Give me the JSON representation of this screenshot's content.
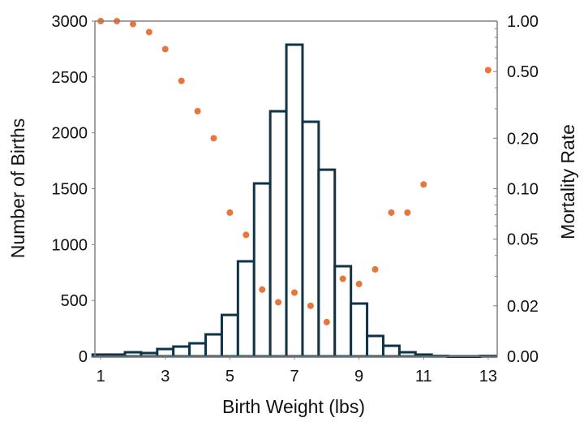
{
  "chart_data": {
    "type": "bar",
    "xlabel": "Birth Weight (lbs)",
    "ylabel": "Number of Births",
    "y2label": "Mortality Rate",
    "xlim": [
      0.82,
      13.28
    ],
    "ylim": [
      0,
      3000
    ],
    "y2scale": "log",
    "y2lim": [
      0.01,
      1.0
    ],
    "x_ticks": [
      1,
      3,
      5,
      7,
      9,
      11,
      13
    ],
    "y_ticks": [
      0,
      500,
      1000,
      1500,
      2000,
      2500,
      3000
    ],
    "y2_ticks": [
      {
        "value": 0.01,
        "label": "0.00"
      },
      {
        "value": 0.02,
        "label": "0.02"
      },
      {
        "value": 0.05,
        "label": "0.05"
      },
      {
        "value": 0.1,
        "label": "0.10"
      },
      {
        "value": 0.2,
        "label": "0.20"
      },
      {
        "value": 0.5,
        "label": "0.50"
      },
      {
        "value": 1.0,
        "label": "1.00"
      }
    ],
    "grid": false,
    "bin_width": 0.5,
    "histogram": {
      "x": [
        1,
        1.5,
        2,
        2.5,
        3,
        3.5,
        4,
        4.5,
        5,
        5.5,
        6,
        6.5,
        7,
        7.5,
        8,
        8.5,
        9,
        9.5,
        10,
        10.5,
        11,
        11.5,
        12,
        12.5,
        13
      ],
      "values": [
        15,
        15,
        36,
        29,
        65,
        87,
        116,
        196,
        370,
        850,
        1547,
        2193,
        2789,
        2099,
        1670,
        806,
        472,
        182,
        94,
        36,
        15,
        3,
        0,
        0,
        3
      ]
    },
    "mortality": {
      "x": [
        1,
        1.5,
        2,
        2.5,
        3,
        3.5,
        4,
        4.5,
        5,
        5.5,
        6,
        6.5,
        7,
        7.5,
        8,
        8.5,
        9,
        9.5,
        10,
        10.5,
        11,
        13
      ],
      "values": [
        1.0,
        1.0,
        0.96,
        0.86,
        0.68,
        0.44,
        0.29,
        0.2,
        0.072,
        0.053,
        0.025,
        0.021,
        0.024,
        0.02,
        0.016,
        0.029,
        0.027,
        0.033,
        0.072,
        0.072,
        0.106,
        0.51
      ]
    },
    "colors": {
      "bars": "#0f3347",
      "dots": "#e8763a",
      "axis": "#808080"
    }
  }
}
